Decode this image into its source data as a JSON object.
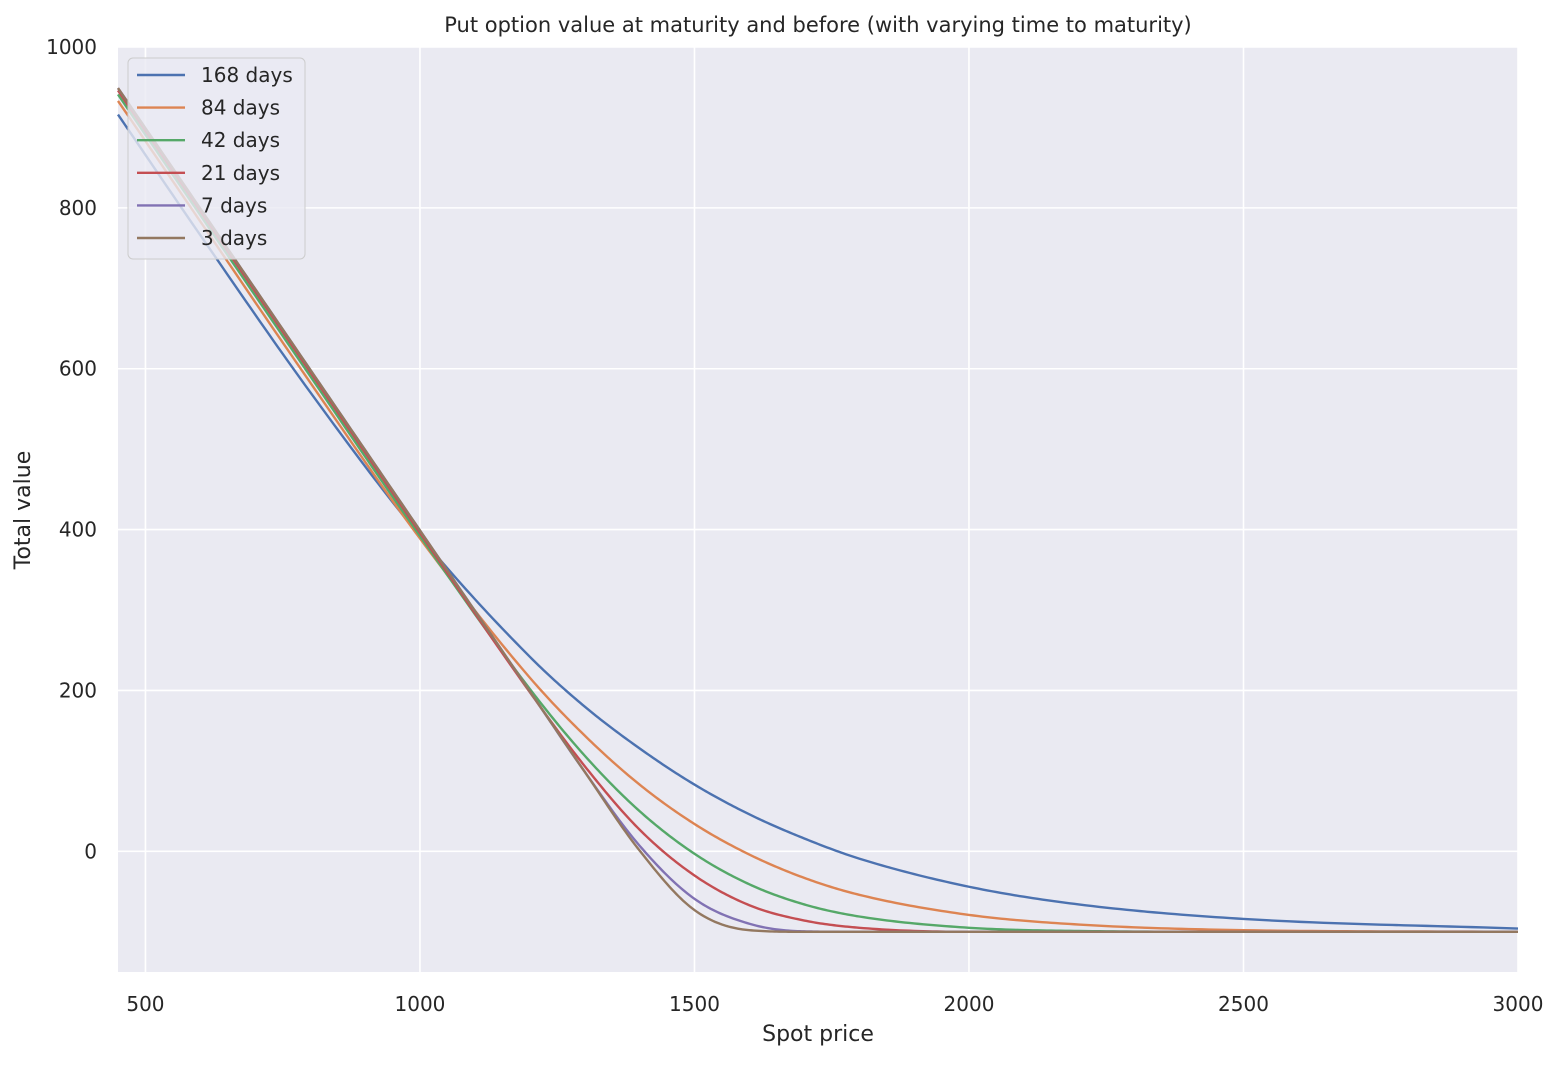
{
  "chart_data": {
    "type": "line",
    "title": "Put option value at maturity and before (with varying time to maturity)",
    "xlabel": "Spot price",
    "ylabel": "Total value",
    "xlim": [
      450,
      3000
    ],
    "ylim": [
      -150,
      1000
    ],
    "xticks": [
      500,
      1000,
      1500,
      2000,
      2500,
      3000
    ],
    "yticks": [
      0,
      200,
      400,
      600,
      800,
      1000
    ],
    "grid": true,
    "background": "#eaeaf2",
    "legend_placement": "top-left",
    "x": [
      450,
      600,
      800,
      1000,
      1200,
      1300,
      1400,
      1500,
      1600,
      1700,
      1800,
      2000,
      2200,
      2500,
      3000
    ],
    "series": [
      {
        "name": "168 days",
        "color": "#4c72b0",
        "values": [
          916,
          766,
          571,
          392,
          242,
          180,
          128,
          83,
          46,
          16,
          -9,
          -44,
          -66,
          -84,
          -96
        ]
      },
      {
        "name": "84 days",
        "color": "#dd8452",
        "values": [
          933,
          783,
          583,
          389,
          216,
          144,
          83,
          34,
          -4,
          -33,
          -54,
          -79,
          -91,
          -98,
          -100
        ]
      },
      {
        "name": "42 days",
        "color": "#55a868",
        "values": [
          941,
          791,
          591,
          392,
          202,
          119,
          50,
          -3,
          -41,
          -66,
          -81,
          -95,
          -99,
          -100,
          -100
        ]
      },
      {
        "name": "21 days",
        "color": "#c44e52",
        "values": [
          946,
          796,
          596,
          396,
          198,
          106,
          27,
          -30,
          -67,
          -86,
          -95,
          -100,
          -100,
          -100,
          -100
        ]
      },
      {
        "name": "7 days",
        "color": "#8172b3",
        "values": [
          949,
          799,
          599,
          399,
          199,
          99,
          7,
          -59,
          -90,
          -99.5,
          -100,
          -100,
          -100,
          -100,
          -100
        ]
      },
      {
        "name": "3 days",
        "color": "#937860",
        "values": [
          949,
          799,
          599,
          399,
          199,
          99,
          1,
          -73,
          -98,
          -100,
          -100,
          -100,
          -100,
          -100,
          -100
        ]
      }
    ]
  }
}
